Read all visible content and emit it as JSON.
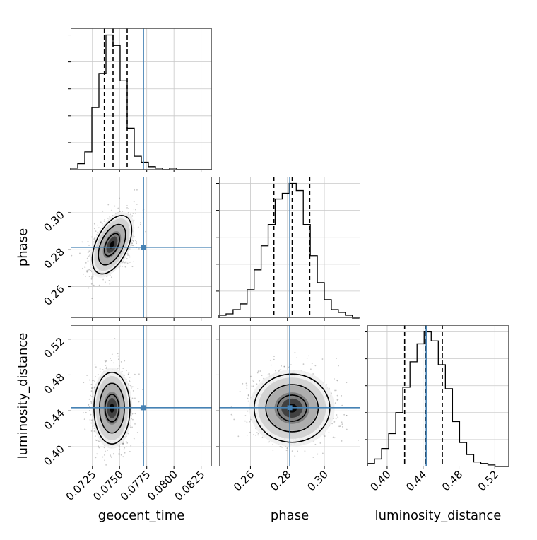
{
  "chart_data": {
    "type": "corner",
    "parameters": [
      "geocent_time",
      "phase",
      "luminosity_distance"
    ],
    "truth": {
      "geocent_time": 0.0772,
      "phase": 0.2813,
      "luminosity_distance": 0.4435
    },
    "truth_color": "#4682b4",
    "axes": {
      "geocent_time": {
        "range": [
          0.0705,
          0.0835
        ],
        "ticks": [
          "0.0725",
          "0.0750",
          "0.0775",
          "0.0800",
          "0.0825"
        ],
        "tick_values": [
          0.0725,
          0.075,
          0.0775,
          0.08,
          0.0825
        ]
      },
      "phase": {
        "range": [
          0.243,
          0.3195
        ],
        "ticks": [
          "0.26",
          "0.28",
          "0.30"
        ],
        "tick_values": [
          0.26,
          0.28,
          0.3
        ]
      },
      "luminosity_distance": {
        "range": [
          0.378,
          0.5355
        ],
        "ticks": [
          "0.40",
          "0.44",
          "0.48",
          "0.52"
        ],
        "tick_values": [
          0.4,
          0.44,
          0.48,
          0.52
        ]
      }
    },
    "histograms": [
      {
        "parameter": "geocent_time",
        "bin_edges": [
          0.0705,
          0.07115,
          0.0718,
          0.07245,
          0.0731,
          0.07375,
          0.0744,
          0.07505,
          0.0757,
          0.07635,
          0.077,
          0.07765,
          0.0783,
          0.07895,
          0.0796,
          0.08025,
          0.0809,
          0.08155,
          0.0822,
          0.08285,
          0.0835
        ],
        "counts": [
          1,
          4,
          12,
          42,
          65,
          91,
          84,
          60,
          28,
          9,
          5,
          2,
          1,
          0,
          1,
          0,
          0,
          0,
          0,
          0
        ],
        "quantiles": [
          0.0736,
          0.0744,
          0.0757
        ]
      },
      {
        "parameter": "phase",
        "bin_edges": [
          0.243,
          0.2468,
          0.2506,
          0.2544,
          0.2582,
          0.262,
          0.2658,
          0.2696,
          0.2734,
          0.2772,
          0.281,
          0.2848,
          0.2886,
          0.2924,
          0.2962,
          0.3,
          0.3038,
          0.3076,
          0.3114,
          0.3152,
          0.319
        ],
        "counts": [
          2,
          3,
          6,
          10,
          20,
          34,
          51,
          66,
          84,
          88,
          95,
          90,
          66,
          44,
          25,
          13,
          6,
          4,
          2,
          0
        ],
        "quantiles": [
          0.2727,
          0.2826,
          0.2921
        ]
      },
      {
        "parameter": "luminosity_distance",
        "bin_edges": [
          0.378,
          0.3859,
          0.3938,
          0.4017,
          0.4096,
          0.4175,
          0.4254,
          0.4333,
          0.4412,
          0.4491,
          0.457,
          0.4649,
          0.4728,
          0.4807,
          0.4886,
          0.4965,
          0.5044,
          0.5123,
          0.5202,
          0.5281,
          0.536
        ],
        "counts": [
          2,
          5,
          12,
          22,
          36,
          53,
          70,
          82,
          90,
          84,
          68,
          52,
          30,
          16,
          8,
          3,
          2,
          1,
          0,
          0
        ],
        "quantiles": [
          0.4195,
          0.4425,
          0.4615
        ]
      }
    ],
    "pairs": [
      {
        "x": "geocent_time",
        "y": "phase",
        "center": [
          0.0743,
          0.2827
        ],
        "sigma": [
          0.00093,
          0.0081
        ],
        "corr": 0.5
      },
      {
        "x": "geocent_time",
        "y": "luminosity_distance",
        "center": [
          0.0743,
          0.443
        ],
        "sigma": [
          0.00085,
          0.0205
        ],
        "corr": 0.0
      },
      {
        "x": "phase",
        "y": "luminosity_distance",
        "center": [
          0.2825,
          0.443
        ],
        "sigma": [
          0.0105,
          0.0195
        ],
        "corr": 0.0
      }
    ]
  }
}
